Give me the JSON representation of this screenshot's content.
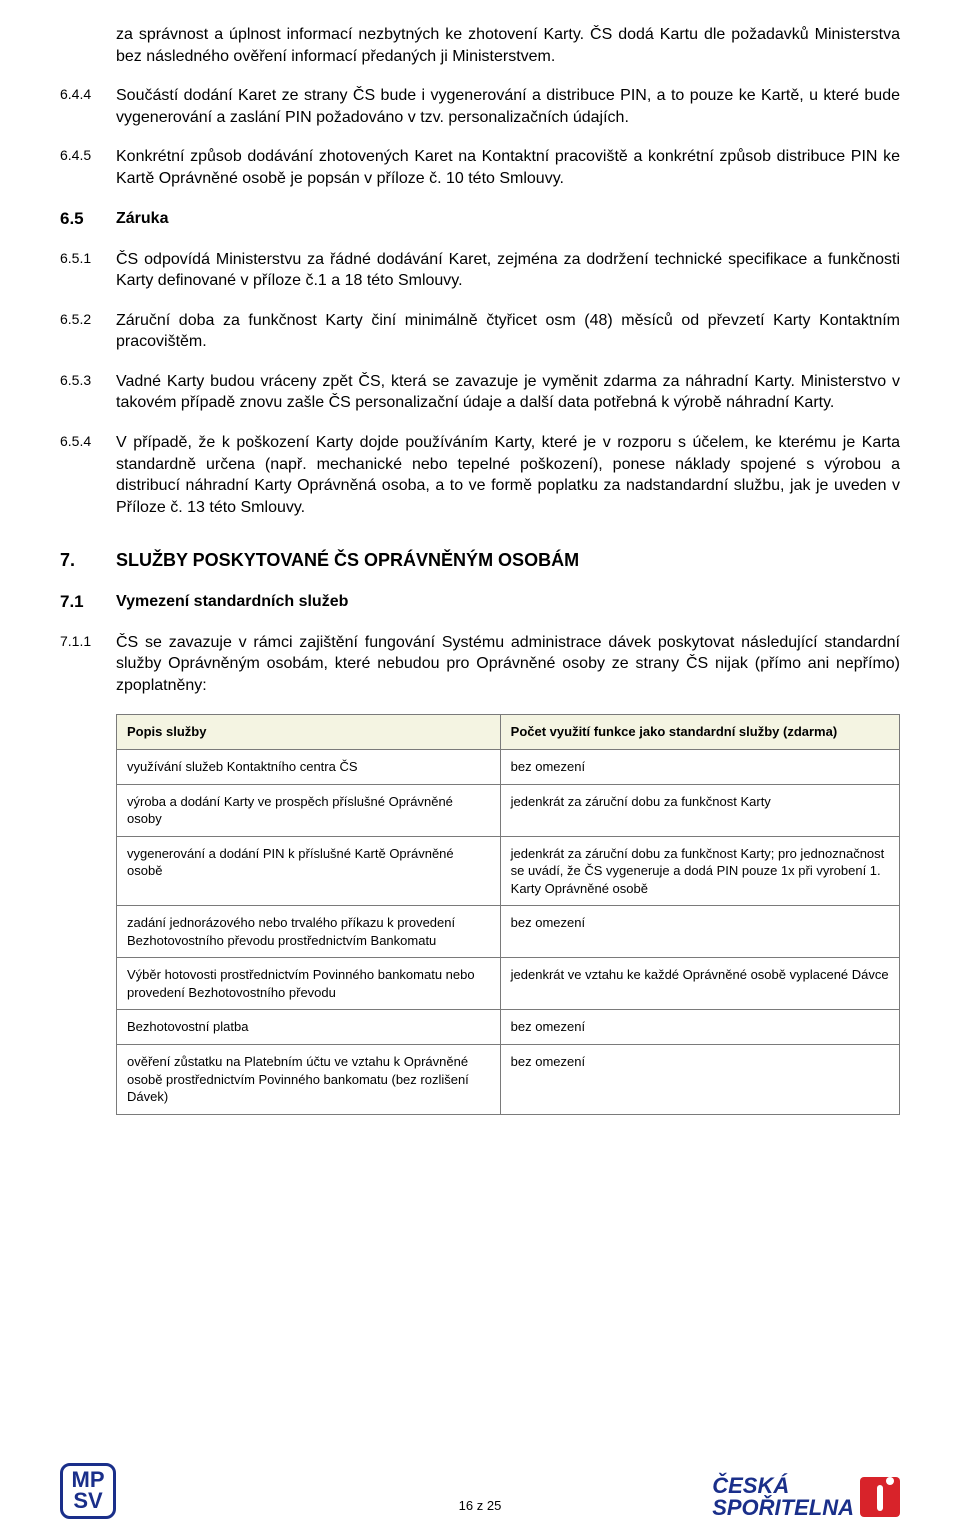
{
  "clauses": [
    {
      "num": "",
      "cont": true,
      "text": "za správnost a úplnost informací nezbytných ke zhotovení Karty. ČS dodá Kartu dle požadavků Ministerstva bez následného ověření informací předaných ji Ministerstvem."
    },
    {
      "num": "6.4.4",
      "text": "Součástí dodání Karet ze strany ČS bude i vygenerování a distribuce PIN, a to pouze ke Kartě, u které bude vygenerování a zaslání PIN požadováno v tzv. personalizačních údajích."
    },
    {
      "num": "6.4.5",
      "text": "Konkrétní způsob dodávání zhotovených Karet na Kontaktní pracoviště a konkrétní způsob distribuce PIN ke Kartě Oprávněné osobě je popsán v příloze č. 10 této Smlouvy."
    },
    {
      "num": "6.5",
      "bold": true,
      "hnum": true,
      "text": "Záruka"
    },
    {
      "num": "6.5.1",
      "text": "ČS odpovídá Ministerstvu za řádné dodávání Karet, zejména za dodržení technické specifikace a funkčnosti Karty definované v příloze č.1 a 18 této Smlouvy."
    },
    {
      "num": "6.5.2",
      "text": "Záruční doba za funkčnost Karty činí minimálně čtyřicet osm (48) měsíců od převzetí Karty Kontaktním pracovištěm."
    },
    {
      "num": "6.5.3",
      "text": "Vadné Karty budou vráceny zpět ČS, která se zavazuje je vyměnit zdarma za náhradní Karty. Ministerstvo v takovém případě znovu zašle ČS personalizační údaje a další data potřebná k výrobě náhradní Karty."
    },
    {
      "num": "6.5.4",
      "text": "V případě, že k poškození Karty dojde používáním Karty, které je v rozporu s účelem, ke kterému je Karta standardně určena (např. mechanické nebo tepelné poškození), ponese náklady spojené s výrobou a distribucí náhradní Karty Oprávněná osoba, a to ve formě poplatku za nadstandardní službu, jak je uveden v Příloze č. 13 této Smlouvy."
    },
    {
      "num": "7.",
      "bold": true,
      "major": true,
      "text": "SLUŽBY POSKYTOVANÉ ČS OPRÁVNĚNÝM OSOBÁM",
      "gapBefore": true
    },
    {
      "num": "7.1",
      "bold": true,
      "hnum": true,
      "text": "Vymezení standardních služeb"
    },
    {
      "num": "7.1.1",
      "text": "ČS se zavazuje v rámci zajištění fungování Systému administrace dávek poskytovat následující standardní služby Oprávněným osobám, které nebudou pro Oprávněné osoby ze strany ČS nijak (přímo ani nepřímo) zpoplatněny:"
    }
  ],
  "table": {
    "header_bg": "#f4f4e2",
    "border_color": "#7a7a7a",
    "headers": [
      "Popis služby",
      "Počet využití funkce jako standardní služby (zdarma)"
    ],
    "rows": [
      [
        "využívání služeb Kontaktního centra ČS",
        "bez omezení"
      ],
      [
        "výroba a dodání Karty ve prospěch příslušné Oprávněné osoby",
        "jedenkrát za záruční dobu za funkčnost Karty"
      ],
      [
        "vygenerování a dodání PIN k příslušné Kartě Oprávněné osobě",
        "jedenkrát za záruční dobu za funkčnost Karty; pro jednoznačnost se uvádí, že ČS vygeneruje a dodá PIN pouze 1x při vyrobení 1. Karty Oprávněné osobě"
      ],
      [
        "zadání jednorázového nebo trvalého příkazu k provedení Bezhotovostního převodu prostřednictvím Bankomatu",
        "bez omezení"
      ],
      [
        "Výběr hotovosti prostřednictvím Povinného bankomatu nebo provedení Bezhotovostního převodu",
        "jedenkrát ve vztahu ke každé Oprávněné osobě vyplacené Dávce"
      ],
      [
        "Bezhotovostní platba",
        "bez omezení"
      ],
      [
        "ověření zůstatku na Platebním účtu ve vztahu k Oprávněné osobě prostřednictvím Povinného bankomatu (bez rozlišení Dávek)",
        "bez omezení"
      ]
    ]
  },
  "footer": {
    "page": "16 z 25",
    "mpsv_line1": "MP",
    "mpsv_line2": "SV",
    "cs_line1": "ČESKÁ",
    "cs_line2": "SPOŘITELNA"
  },
  "colors": {
    "text": "#000000",
    "brand_blue": "#1a2f8a",
    "brand_red": "#d8232a",
    "background": "#ffffff"
  }
}
